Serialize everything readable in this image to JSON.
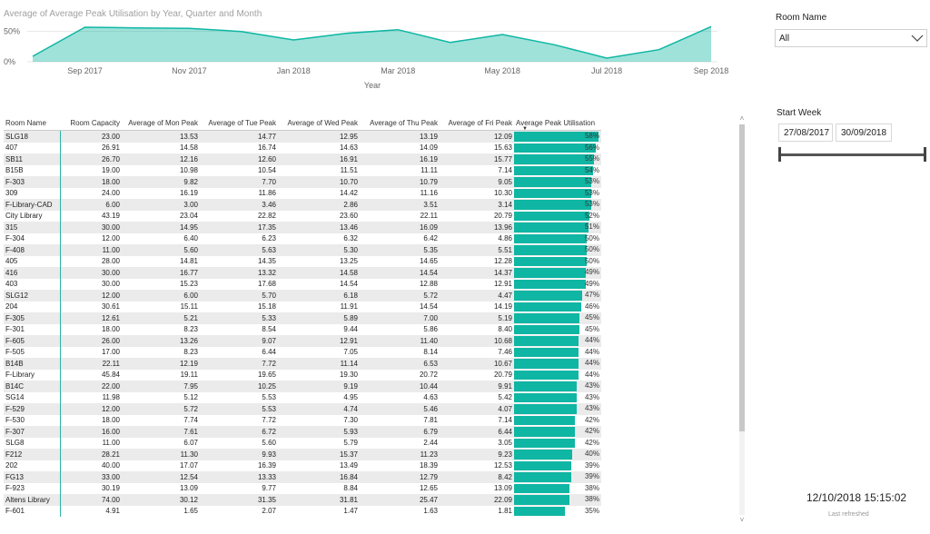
{
  "chart_data": {
    "type": "area",
    "title": "Average of Average Peak Utilisation by Year, Quarter and Month",
    "xlabel": "Year",
    "ylabel": "",
    "x": [
      "Aug 2017",
      "Sep 2017",
      "Oct 2017",
      "Nov 2017",
      "Dec 2017",
      "Jan 2018",
      "Feb 2018",
      "Mar 2018",
      "Apr 2018",
      "May 2018",
      "Jun 2018",
      "Jul 2018",
      "Aug 2018",
      "Sep 2018"
    ],
    "values": [
      0.09,
      0.57,
      0.56,
      0.55,
      0.5,
      0.36,
      0.47,
      0.53,
      0.32,
      0.45,
      0.28,
      0.06,
      0.2,
      0.58
    ],
    "x_tick_labels": [
      "Sep 2017",
      "Nov 2017",
      "Jan 2018",
      "Mar 2018",
      "May 2018",
      "Jul 2018",
      "Sep 2018"
    ],
    "x_tick_indices": [
      1,
      3,
      5,
      7,
      9,
      11,
      13
    ],
    "y_tick_labels": [
      "50%",
      "0%"
    ],
    "ylim": [
      0,
      0.6
    ],
    "grid": true,
    "color": "#0fb6a3"
  },
  "table": {
    "columns": [
      "Room Name",
      "Room Capacity",
      "Average of Mon Peak",
      "Average of Tue Peak",
      "Average of Wed Peak",
      "Average of Thu Peak",
      "Average of Fri Peak",
      "Average Peak Utilisation"
    ],
    "rows": [
      [
        "SLG18",
        "23.00",
        "13.53",
        "14.77",
        "12.95",
        "13.19",
        "12.09",
        "58%"
      ],
      [
        "407",
        "26.91",
        "14.58",
        "16.74",
        "14.63",
        "14.09",
        "15.63",
        "56%"
      ],
      [
        "SB11",
        "26.70",
        "12.16",
        "12.60",
        "16.91",
        "16.19",
        "15.77",
        "55%"
      ],
      [
        "B15B",
        "19.00",
        "10.98",
        "10.54",
        "11.51",
        "11.11",
        "7.14",
        "54%"
      ],
      [
        "F-303",
        "18.00",
        "9.82",
        "7.70",
        "10.70",
        "10.79",
        "9.05",
        "53%"
      ],
      [
        "309",
        "24.00",
        "16.19",
        "11.86",
        "14.42",
        "11.16",
        "10.30",
        "53%"
      ],
      [
        "F-Library-CAD",
        "6.00",
        "3.00",
        "3.46",
        "2.86",
        "3.51",
        "3.14",
        "53%"
      ],
      [
        "City Library",
        "43.19",
        "23.04",
        "22.82",
        "23.60",
        "22.11",
        "20.79",
        "52%"
      ],
      [
        "315",
        "30.00",
        "14.95",
        "17.35",
        "13.46",
        "16.09",
        "13.96",
        "51%"
      ],
      [
        "F-304",
        "12.00",
        "6.40",
        "6.23",
        "6.32",
        "6.42",
        "4.86",
        "50%"
      ],
      [
        "F-408",
        "11.00",
        "5.60",
        "5.63",
        "5.30",
        "5.35",
        "5.51",
        "50%"
      ],
      [
        "405",
        "28.00",
        "14.81",
        "14.35",
        "13.25",
        "14.65",
        "12.28",
        "50%"
      ],
      [
        "416",
        "30.00",
        "16.77",
        "13.32",
        "14.58",
        "14.54",
        "14.37",
        "49%"
      ],
      [
        "403",
        "30.00",
        "15.23",
        "17.68",
        "14.54",
        "12.88",
        "12.91",
        "49%"
      ],
      [
        "SLG12",
        "12.00",
        "6.00",
        "5.70",
        "6.18",
        "5.72",
        "4.47",
        "47%"
      ],
      [
        "204",
        "30.61",
        "15.11",
        "15.18",
        "11.91",
        "14.54",
        "14.19",
        "46%"
      ],
      [
        "F-305",
        "12.61",
        "5.21",
        "5.33",
        "5.89",
        "7.00",
        "5.19",
        "45%"
      ],
      [
        "F-301",
        "18.00",
        "8.23",
        "8.54",
        "9.44",
        "5.86",
        "8.40",
        "45%"
      ],
      [
        "F-605",
        "26.00",
        "13.26",
        "9.07",
        "12.91",
        "11.40",
        "10.68",
        "44%"
      ],
      [
        "F-505",
        "17.00",
        "8.23",
        "6.44",
        "7.05",
        "8.14",
        "7.46",
        "44%"
      ],
      [
        "B14B",
        "22.11",
        "12.19",
        "7.72",
        "11.14",
        "6.53",
        "10.67",
        "44%"
      ],
      [
        "F-Library",
        "45.84",
        "19.11",
        "19.65",
        "19.30",
        "20.72",
        "20.79",
        "44%"
      ],
      [
        "B14C",
        "22.00",
        "7.95",
        "10.25",
        "9.19",
        "10.44",
        "9.91",
        "43%"
      ],
      [
        "SG14",
        "11.98",
        "5.12",
        "5.53",
        "4.95",
        "4.63",
        "5.42",
        "43%"
      ],
      [
        "F-529",
        "12.00",
        "5.72",
        "5.53",
        "4.74",
        "5.46",
        "4.07",
        "43%"
      ],
      [
        "F-530",
        "18.00",
        "7.74",
        "7.72",
        "7.30",
        "7.81",
        "7.14",
        "42%"
      ],
      [
        "F-307",
        "16.00",
        "7.61",
        "6.72",
        "5.93",
        "6.79",
        "6.44",
        "42%"
      ],
      [
        "SLG8",
        "11.00",
        "6.07",
        "5.60",
        "5.79",
        "2.44",
        "3.05",
        "42%"
      ],
      [
        "F212",
        "28.21",
        "11.30",
        "9.93",
        "15.37",
        "11.23",
        "9.23",
        "40%"
      ],
      [
        "202",
        "40.00",
        "17.07",
        "16.39",
        "13.49",
        "18.39",
        "12.53",
        "39%"
      ],
      [
        "FG13",
        "33.00",
        "12.54",
        "13.33",
        "16.84",
        "12.79",
        "8.42",
        "39%"
      ],
      [
        "F-923",
        "30.19",
        "13.09",
        "9.77",
        "8.84",
        "12.65",
        "13.09",
        "38%"
      ],
      [
        "Altens Library",
        "74.00",
        "30.12",
        "31.35",
        "31.81",
        "25.47",
        "22.09",
        "38%"
      ],
      [
        "F-601",
        "4.91",
        "1.65",
        "2.07",
        "1.47",
        "1.63",
        "1.81",
        "35%"
      ]
    ],
    "bar_color": "#0fb6a3"
  },
  "filters": {
    "room_name_label": "Room Name",
    "room_name_value": "All",
    "start_week_label": "Start Week",
    "start_date": "27/08/2017",
    "end_date": "30/09/2018"
  },
  "refresh": {
    "time": "12/10/2018 15:15:02",
    "label": "Last refreshed"
  }
}
